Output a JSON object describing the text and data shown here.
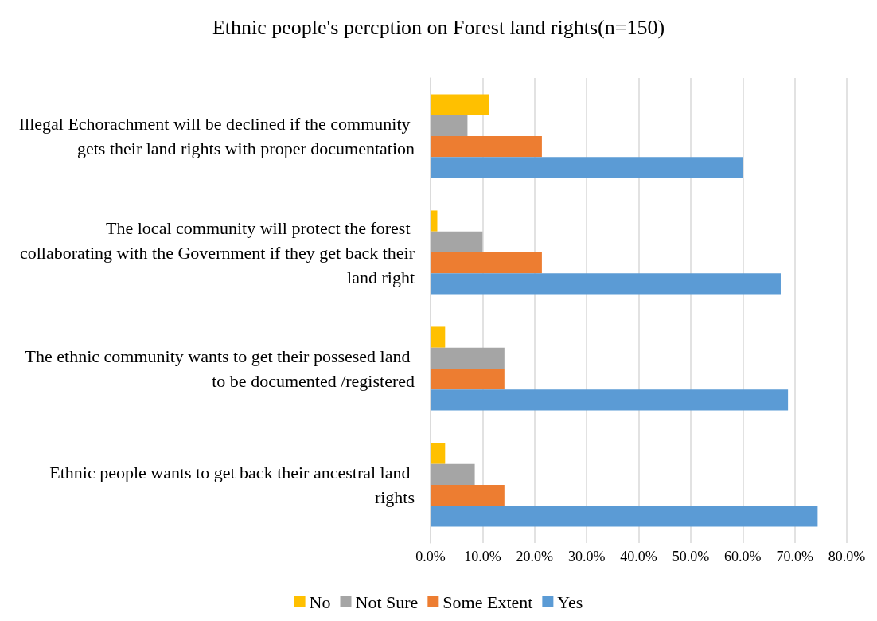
{
  "chart_data": {
    "type": "bar",
    "orientation": "horizontal",
    "title": "Ethnic people's percption on Forest land rights(n=150)",
    "categories": [
      "Illegal Echorachment will be declined if the community gets their land rights with proper documentation",
      "The local community will protect the forest collaborating with the Government if they get back their land right",
      "The ethnic community wants to get their possesed land to be documented /registered",
      "Ethnic people wants to get back their ancestral land rights"
    ],
    "series": [
      {
        "name": "No",
        "color": "#ffc000",
        "values": [
          11.3,
          1.3,
          2.8,
          2.8
        ]
      },
      {
        "name": "Not Sure",
        "color": "#a5a5a5",
        "values": [
          7.1,
          10.0,
          14.2,
          8.5
        ]
      },
      {
        "name": "Some Extent",
        "color": "#ed7d31",
        "values": [
          21.4,
          21.4,
          14.2,
          14.2
        ]
      },
      {
        "name": "Yes",
        "color": "#5b9bd5",
        "values": [
          60.0,
          67.3,
          68.7,
          74.4
        ]
      }
    ],
    "xlim": [
      0,
      80
    ],
    "xticks": [
      {
        "value": 0,
        "label": "0.0%"
      },
      {
        "value": 10,
        "label": "10.0%"
      },
      {
        "value": 20,
        "label": "20.0%"
      },
      {
        "value": 30,
        "label": "30.0%"
      },
      {
        "value": 40,
        "label": "40.0%"
      },
      {
        "value": 50,
        "label": "50.0%"
      },
      {
        "value": 60,
        "label": "60.0%"
      },
      {
        "value": 70,
        "label": "70.0%"
      },
      {
        "value": 80,
        "label": "80.0%"
      }
    ],
    "grid": "x",
    "legend": "bottom"
  }
}
